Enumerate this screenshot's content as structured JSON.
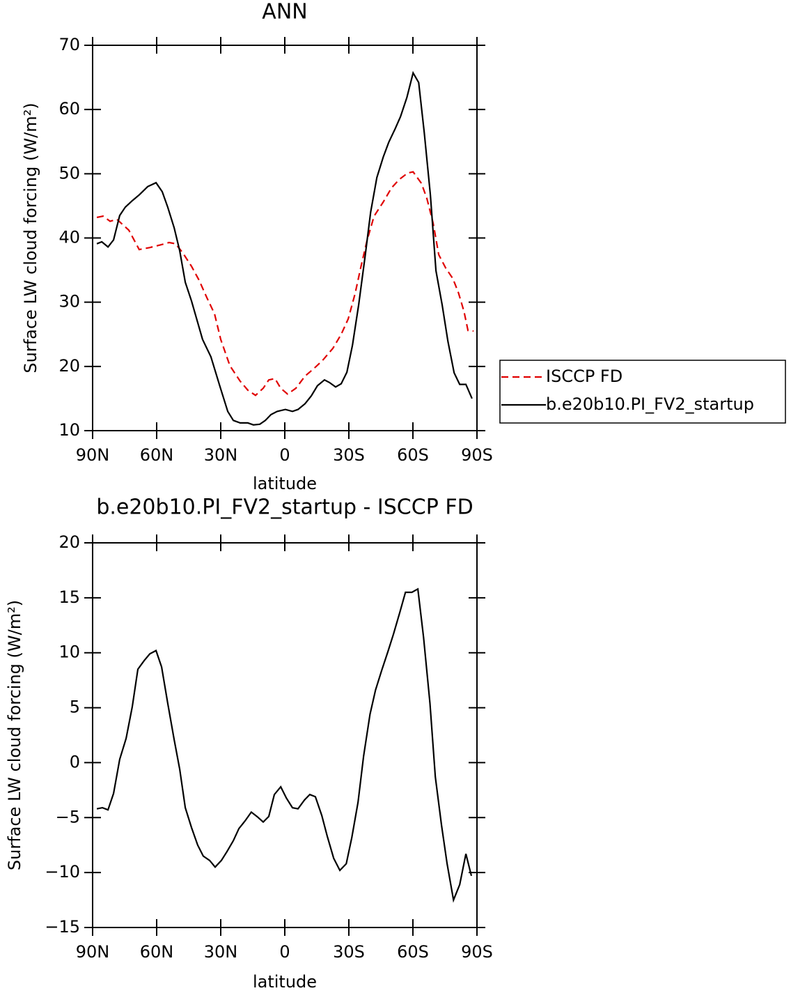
{
  "chart_data": [
    {
      "type": "line",
      "title": "ANN",
      "xlabel": "latitude",
      "ylabel": "Surface LW cloud forcing (W/m²)",
      "xlim": [
        90,
        -90
      ],
      "xticks": [
        {
          "value": 90,
          "label": "90N"
        },
        {
          "value": 60,
          "label": "60N"
        },
        {
          "value": 30,
          "label": "30N"
        },
        0,
        {
          "value": -30,
          "label": "30S"
        },
        {
          "value": -60,
          "label": "60S"
        },
        {
          "value": -90,
          "label": "90S"
        }
      ],
      "ylim": [
        10,
        70
      ],
      "yticks": [
        10,
        20,
        30,
        40,
        50,
        60,
        70
      ],
      "legend": "right",
      "series": [
        {
          "name": "ISCCP FD",
          "color": "#e00000",
          "dash": true,
          "x": [
            88,
            85.1,
            81.8,
            78.6,
            73,
            68.2,
            63.3,
            58.4,
            54.2,
            51.2,
            48,
            43.7,
            40.1,
            36.5,
            32.9,
            30,
            25.7,
            20.9,
            17.3,
            13.7,
            10.1,
            7.5,
            4.6,
            1.9,
            -1.3,
            -5.2,
            -9.5,
            -13.4,
            -17.6,
            -22.5,
            -26.4,
            -29.7,
            -32.9,
            -35.5,
            -38.5,
            -41.8,
            -46.1,
            -50,
            -53.6,
            -57.5,
            -60.1,
            -64,
            -66.6,
            -69.5,
            -72.1,
            -75.4,
            -78.7,
            -81.3,
            -83.9,
            -85.8,
            -88.4
          ],
          "values": [
            43.2,
            43.4,
            42.6,
            42.9,
            41.2,
            38.2,
            38.5,
            38.9,
            39.3,
            39.1,
            37.8,
            35.6,
            33.4,
            30.7,
            28.2,
            24.2,
            20.1,
            17.7,
            16.3,
            15.5,
            16.6,
            17.9,
            18.1,
            16.6,
            15.7,
            16.6,
            18.5,
            19.6,
            20.9,
            22.8,
            25,
            27.4,
            31.3,
            35.3,
            39.6,
            43.4,
            45.6,
            47.8,
            49.1,
            50.1,
            50.3,
            48.5,
            46.1,
            42.3,
            37.4,
            35.3,
            33.7,
            31.5,
            28.6,
            25.6,
            25.5
          ]
        },
        {
          "name": "b.e20b10.PI_FV2_startup",
          "color": "#000000",
          "dash": false,
          "x": [
            88,
            85.7,
            82.8,
            80.2,
            77.3,
            74.7,
            71.4,
            68.2,
            64.2,
            60.3,
            57.4,
            54.8,
            51.8,
            49.2,
            46.6,
            43.7,
            38.5,
            34.6,
            30.3,
            26.7,
            24.1,
            20.9,
            17.3,
            14.7,
            11.7,
            9.1,
            6.5,
            3.6,
            -0.3,
            -3.6,
            -6.2,
            -9.5,
            -12.4,
            -15.3,
            -18.6,
            -20.9,
            -23.8,
            -26.4,
            -29.1,
            -31.7,
            -34.6,
            -37.6,
            -40.2,
            -43.1,
            -46.1,
            -48.7,
            -51.7,
            -54.2,
            -57.2,
            -60.1,
            -62.7,
            -65.3,
            -68.2,
            -70.8,
            -73.7,
            -76.4,
            -79.3,
            -81.9,
            -84.8,
            -87.7
          ],
          "values": [
            39.1,
            39.4,
            38.6,
            39.7,
            43.5,
            44.8,
            45.8,
            46.7,
            48,
            48.6,
            47.2,
            44.8,
            41.6,
            38,
            33.1,
            30.2,
            24.2,
            21.5,
            16.8,
            13,
            11.6,
            11.2,
            11.2,
            10.9,
            11,
            11.6,
            12.5,
            13,
            13.3,
            13,
            13.3,
            14.2,
            15.4,
            17,
            17.9,
            17.5,
            16.8,
            17.3,
            19.1,
            23.3,
            29.6,
            37.1,
            44,
            49.4,
            52.6,
            54.9,
            57,
            58.9,
            61.9,
            65.7,
            64.2,
            56.4,
            46.7,
            34.9,
            29.6,
            23.9,
            19,
            17.2,
            17.2,
            15
          ]
        }
      ]
    },
    {
      "type": "line",
      "title": "b.e20b10.PI_FV2_startup - ISCCP FD",
      "xlabel": "latitude",
      "ylabel": "Surface LW cloud forcing (W/m²)",
      "xlim": [
        90,
        -90
      ],
      "xticks": [
        {
          "value": 90,
          "label": "90N"
        },
        {
          "value": 60,
          "label": "60N"
        },
        {
          "value": 30,
          "label": "30N"
        },
        0,
        {
          "value": -30,
          "label": "30S"
        },
        {
          "value": -60,
          "label": "60S"
        },
        {
          "value": -90,
          "label": "90S"
        }
      ],
      "ylim": [
        -15,
        20
      ],
      "yticks": [
        {
          "value": -15,
          "label": "−15"
        },
        {
          "value": -10,
          "label": "−10"
        },
        {
          "value": -5,
          "label": "−5"
        },
        0,
        5,
        10,
        15,
        20
      ],
      "series": [
        {
          "color": "#000000",
          "dash": false,
          "x": [
            88,
            85.4,
            82.8,
            80.2,
            77.3,
            74.3,
            71.4,
            68.8,
            65.8,
            63.2,
            60.3,
            57.7,
            54.8,
            51.8,
            49.2,
            46.6,
            43.7,
            40.8,
            38.2,
            35.2,
            32.6,
            29.7,
            27.1,
            24.1,
            21.5,
            18.6,
            15.7,
            13,
            10.1,
            7.5,
            4.9,
            1.9,
            -0.7,
            -3.6,
            -6.2,
            -9.2,
            -11.7,
            -14.3,
            -17.3,
            -19.9,
            -22.9,
            -25.8,
            -28.8,
            -31.4,
            -34.3,
            -36.9,
            -39.9,
            -42.5,
            -45.4,
            -48.3,
            -50.9,
            -53.9,
            -56.5,
            -59.5,
            -62.3,
            -65,
            -68,
            -70.5,
            -73.4,
            -76,
            -79,
            -81.9,
            -84.8,
            -87.4
          ],
          "values": [
            -4.2,
            -4.1,
            -4.3,
            -2.8,
            0.3,
            2.2,
            5.1,
            8.5,
            9.3,
            9.9,
            10.2,
            8.7,
            5.4,
            2.1,
            -0.6,
            -4.1,
            -5.9,
            -7.5,
            -8.5,
            -8.9,
            -9.5,
            -8.9,
            -8.1,
            -7.1,
            -6,
            -5.3,
            -4.5,
            -4.9,
            -5.4,
            -4.9,
            -2.9,
            -2.2,
            -3.2,
            -4.1,
            -4.2,
            -3.4,
            -2.9,
            -3.1,
            -4.8,
            -6.7,
            -8.7,
            -9.8,
            -9.2,
            -6.8,
            -3.6,
            0.6,
            4.4,
            6.6,
            8.4,
            10.1,
            11.7,
            13.7,
            15.5,
            15.5,
            15.8,
            11.4,
            5.4,
            -1.3,
            -5.7,
            -9.2,
            -12.5,
            -11.1,
            -8.3,
            -10.3
          ]
        }
      ]
    }
  ]
}
